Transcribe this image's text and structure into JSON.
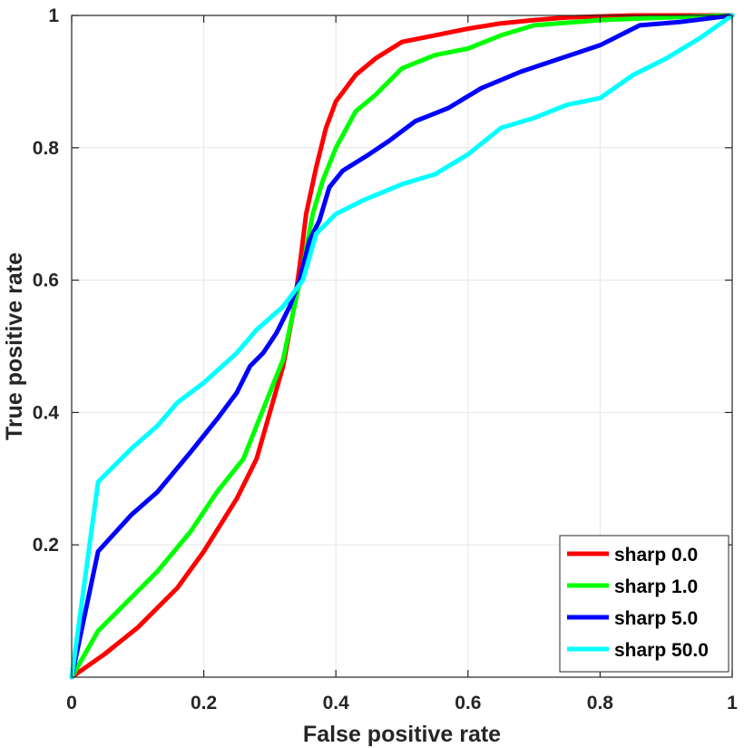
{
  "chart_data": {
    "type": "line",
    "title": "",
    "xlabel": "False positive rate",
    "ylabel": "True positive rate",
    "xlim": [
      0,
      1
    ],
    "ylim": [
      0,
      1
    ],
    "grid": true,
    "legend_position": "bottom-right",
    "x_ticks": [
      {
        "value": 0,
        "label": "0"
      },
      {
        "value": 0.2,
        "label": "0.2"
      },
      {
        "value": 0.4,
        "label": "0.4"
      },
      {
        "value": 0.6,
        "label": "0.6"
      },
      {
        "value": 0.8,
        "label": "0.8"
      },
      {
        "value": 1,
        "label": "1"
      }
    ],
    "y_ticks": [
      {
        "value": 0.2,
        "label": "0.2"
      },
      {
        "value": 0.4,
        "label": "0.4"
      },
      {
        "value": 0.6,
        "label": "0.6"
      },
      {
        "value": 0.8,
        "label": "0.8"
      },
      {
        "value": 1,
        "label": "1"
      }
    ],
    "series": [
      {
        "name": "sharp 0.0",
        "color": "#ff0000",
        "points": [
          [
            0,
            0
          ],
          [
            0.05,
            0.035
          ],
          [
            0.1,
            0.075
          ],
          [
            0.13,
            0.105
          ],
          [
            0.16,
            0.135
          ],
          [
            0.2,
            0.19
          ],
          [
            0.25,
            0.27
          ],
          [
            0.28,
            0.33
          ],
          [
            0.3,
            0.4
          ],
          [
            0.32,
            0.47
          ],
          [
            0.335,
            0.55
          ],
          [
            0.345,
            0.62
          ],
          [
            0.355,
            0.7
          ],
          [
            0.37,
            0.77
          ],
          [
            0.385,
            0.83
          ],
          [
            0.4,
            0.87
          ],
          [
            0.43,
            0.91
          ],
          [
            0.46,
            0.935
          ],
          [
            0.5,
            0.96
          ],
          [
            0.55,
            0.97
          ],
          [
            0.6,
            0.98
          ],
          [
            0.65,
            0.988
          ],
          [
            0.7,
            0.993
          ],
          [
            0.75,
            0.997
          ],
          [
            0.85,
            1.0
          ],
          [
            1,
            1
          ]
        ]
      },
      {
        "name": "sharp 1.0",
        "color": "#00ff00",
        "points": [
          [
            0,
            0
          ],
          [
            0.04,
            0.07
          ],
          [
            0.09,
            0.12
          ],
          [
            0.13,
            0.16
          ],
          [
            0.18,
            0.22
          ],
          [
            0.22,
            0.28
          ],
          [
            0.26,
            0.33
          ],
          [
            0.28,
            0.38
          ],
          [
            0.3,
            0.43
          ],
          [
            0.32,
            0.48
          ],
          [
            0.335,
            0.55
          ],
          [
            0.35,
            0.62
          ],
          [
            0.365,
            0.7
          ],
          [
            0.38,
            0.75
          ],
          [
            0.4,
            0.8
          ],
          [
            0.43,
            0.855
          ],
          [
            0.46,
            0.88
          ],
          [
            0.5,
            0.92
          ],
          [
            0.55,
            0.94
          ],
          [
            0.6,
            0.95
          ],
          [
            0.65,
            0.97
          ],
          [
            0.7,
            0.985
          ],
          [
            0.8,
            0.993
          ],
          [
            0.9,
            0.997
          ],
          [
            1,
            1
          ]
        ]
      },
      {
        "name": "sharp 5.0",
        "color": "#0000ff",
        "points": [
          [
            0,
            0
          ],
          [
            0.04,
            0.19
          ],
          [
            0.09,
            0.245
          ],
          [
            0.13,
            0.28
          ],
          [
            0.18,
            0.34
          ],
          [
            0.22,
            0.39
          ],
          [
            0.25,
            0.43
          ],
          [
            0.27,
            0.47
          ],
          [
            0.29,
            0.49
          ],
          [
            0.31,
            0.52
          ],
          [
            0.33,
            0.56
          ],
          [
            0.345,
            0.6
          ],
          [
            0.36,
            0.66
          ],
          [
            0.375,
            0.69
          ],
          [
            0.39,
            0.74
          ],
          [
            0.41,
            0.765
          ],
          [
            0.45,
            0.79
          ],
          [
            0.48,
            0.81
          ],
          [
            0.52,
            0.84
          ],
          [
            0.57,
            0.86
          ],
          [
            0.62,
            0.89
          ],
          [
            0.68,
            0.915
          ],
          [
            0.74,
            0.935
          ],
          [
            0.8,
            0.955
          ],
          [
            0.86,
            0.985
          ],
          [
            0.92,
            0.99
          ],
          [
            1,
            1
          ]
        ]
      },
      {
        "name": "sharp 50.0",
        "color": "#00ffff",
        "points": [
          [
            0,
            0
          ],
          [
            0.04,
            0.295
          ],
          [
            0.09,
            0.345
          ],
          [
            0.13,
            0.38
          ],
          [
            0.16,
            0.415
          ],
          [
            0.2,
            0.445
          ],
          [
            0.25,
            0.49
          ],
          [
            0.28,
            0.525
          ],
          [
            0.32,
            0.56
          ],
          [
            0.35,
            0.6
          ],
          [
            0.37,
            0.67
          ],
          [
            0.4,
            0.7
          ],
          [
            0.44,
            0.72
          ],
          [
            0.5,
            0.745
          ],
          [
            0.55,
            0.76
          ],
          [
            0.6,
            0.79
          ],
          [
            0.65,
            0.83
          ],
          [
            0.7,
            0.845
          ],
          [
            0.75,
            0.865
          ],
          [
            0.8,
            0.875
          ],
          [
            0.85,
            0.91
          ],
          [
            0.9,
            0.935
          ],
          [
            0.95,
            0.965
          ],
          [
            1,
            1
          ]
        ]
      }
    ]
  }
}
